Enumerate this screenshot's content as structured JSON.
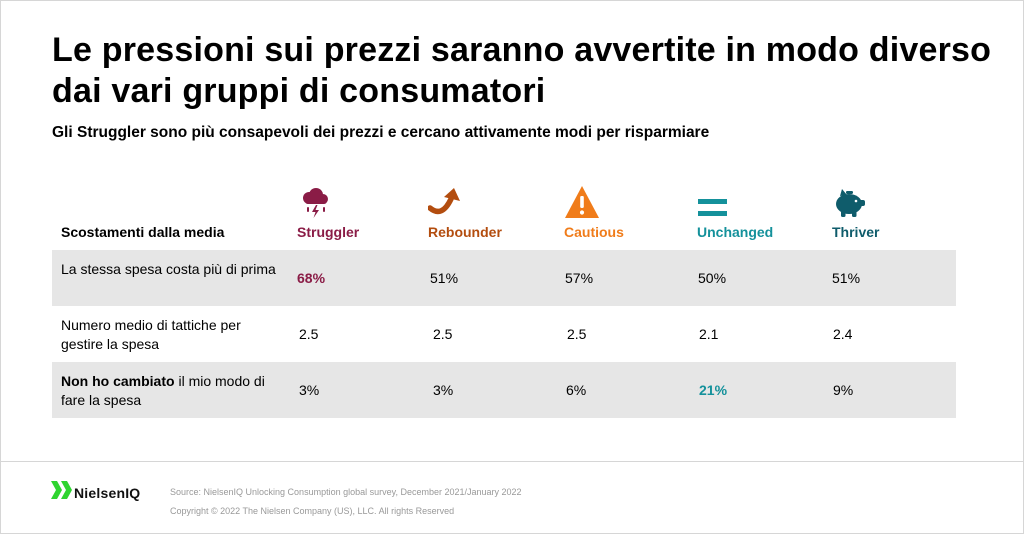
{
  "title": "Le pressioni sui prezzi saranno avvertite in modo diverso dai vari gruppi di consumatori",
  "subtitle": "Gli Struggler sono più consapevoli dei prezzi e cercano attivamente modi per risparmiare",
  "colors": {
    "struggler": "#8a1c46",
    "rebounder": "#b34d0f",
    "cautious": "#f07c1a",
    "unchanged": "#14919b",
    "thriver": "#0f5c6b",
    "row_shade": "#e6e6e6",
    "logo_green": "#2fd430"
  },
  "chart_data": {
    "type": "table",
    "header_label": "Scostamenti dalla media",
    "segments": [
      {
        "name": "Struggler",
        "icon": "storm-cloud-icon",
        "color": "#8a1c46"
      },
      {
        "name": "Rebounder",
        "icon": "curved-up-arrow-icon",
        "color": "#b34d0f"
      },
      {
        "name": "Cautious",
        "icon": "warning-triangle-icon",
        "color": "#f07c1a"
      },
      {
        "name": "Unchanged",
        "icon": "equals-icon",
        "color": "#14919b"
      },
      {
        "name": "Thriver",
        "icon": "piggy-bank-icon",
        "color": "#0f5c6b"
      }
    ],
    "rows": [
      {
        "label": "La stessa spesa costa più di prima",
        "values": [
          "68%",
          "51%",
          "57%",
          "50%",
          "51%"
        ],
        "highlight_index": 0
      },
      {
        "label": "Numero medio di tattiche per gestire la spesa",
        "values": [
          "2.5",
          "2.5",
          "2.5",
          "2.1",
          "2.4"
        ],
        "highlight_index": -1
      },
      {
        "label_bold": "Non ho cambiato",
        "label_rest": " il mio modo di fare la spesa",
        "values": [
          "3%",
          "3%",
          "6%",
          "21%",
          "9%"
        ],
        "highlight_index": 3
      }
    ]
  },
  "footer": {
    "brand": "NielsenIQ",
    "source": "Source: NielsenIQ Unlocking Consumption global survey, December 2021/January 2022",
    "copyright": "Copyright © 2022 The Nielsen Company (US), LLC. All rights Reserved"
  }
}
